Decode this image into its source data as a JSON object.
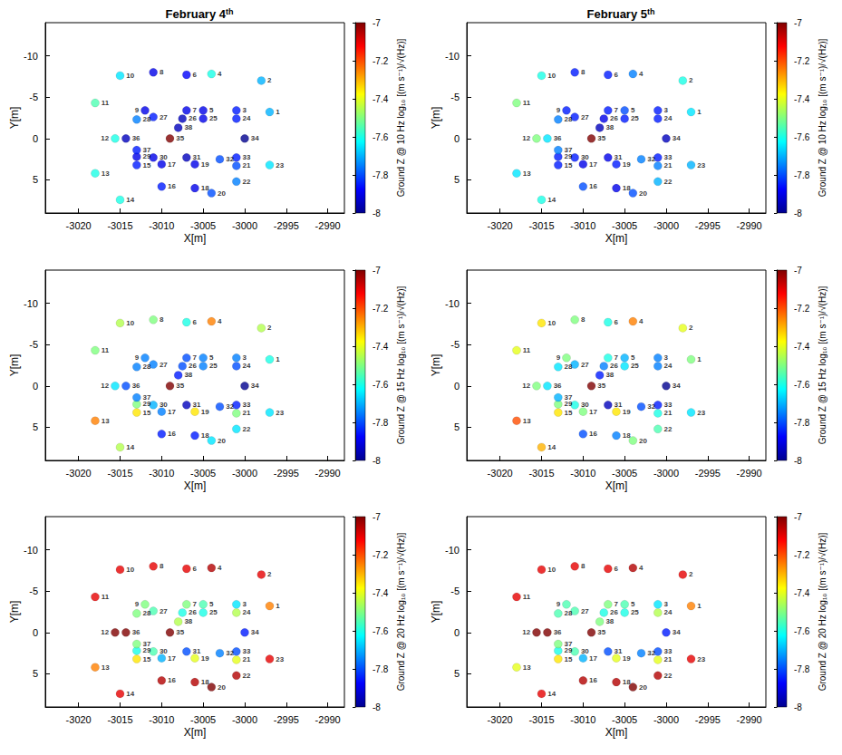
{
  "chart_data": [
    {
      "type": "scatter",
      "title": "February 4th",
      "x_label": "X[m]",
      "y_label": "Y[m]",
      "colorbar_label": "Ground Z @ 10 Hz log₁₀ [(m s⁻¹)/√(Hz)]",
      "x": [
        -2997,
        -2998,
        -3001,
        -3004,
        -3005,
        -3007,
        -3007,
        -3011,
        -3012,
        -3015,
        -3018,
        -3015.6,
        -3018,
        -3015,
        -3013,
        -3010,
        -3010,
        -3006,
        -3006,
        -3004,
        -3001,
        -3001,
        -2997,
        -3001,
        -3005,
        -3007.5,
        -3011,
        -3013,
        -3013,
        -3011,
        -3007,
        -3003,
        -3001,
        -3000,
        -3009,
        -3014.3,
        -3013,
        -3008
      ],
      "y": [
        -3.2,
        -7,
        -3.4,
        -7.8,
        -3.4,
        -7.7,
        -3.4,
        -8,
        -3.4,
        -7.6,
        -4.3,
        0,
        4.2,
        7.4,
        3.2,
        5.8,
        3.1,
        6,
        3.1,
        6.6,
        3.3,
        5.2,
        3.2,
        -2.4,
        -2.4,
        -2.4,
        -2.6,
        -2.3,
        2.2,
        2.3,
        2.3,
        2.5,
        2.3,
        0,
        0,
        0,
        1.4,
        -1.3
      ],
      "point_labels": [
        "1",
        "2",
        "3",
        "4",
        "5",
        "6",
        "7",
        "8",
        "9",
        "10",
        "11",
        "12",
        "13",
        "14",
        "15",
        "16",
        "17",
        "18",
        "19",
        "20",
        "21",
        "22",
        "23",
        "24",
        "25",
        "26",
        "27",
        "28",
        "29",
        "30",
        "31",
        "32",
        "33",
        "34",
        "35",
        "36",
        "37",
        "38"
      ],
      "values": [
        -7.7,
        -7.7,
        -7.85,
        -7.6,
        -7.9,
        -7.88,
        -7.9,
        -7.9,
        -7.9,
        -7.65,
        -7.55,
        -7.6,
        -7.6,
        -7.6,
        -7.85,
        -7.85,
        -7.9,
        -7.9,
        -7.9,
        -7.8,
        -7.8,
        -7.75,
        -7.65,
        -7.85,
        -7.9,
        -7.95,
        -7.85,
        -7.75,
        -7.9,
        -7.9,
        -7.95,
        -7.8,
        -7.85,
        -8,
        -7,
        -7.95,
        -7.85,
        -7.95
      ],
      "xlim": [
        -3024,
        -2988
      ],
      "ylim": [
        9,
        -14
      ],
      "xticks": [
        -3020,
        -3015,
        -3010,
        -3005,
        -3000,
        -2995,
        -2990
      ],
      "yticks": [
        -10,
        -5,
        0,
        5
      ],
      "color_range": [
        -8,
        -7
      ],
      "color_ticks": [
        -8,
        -7.8,
        -7.6,
        -7.4,
        -7.2,
        -7
      ]
    },
    {
      "type": "scatter",
      "title": "February 5th",
      "x_label": "X[m]",
      "y_label": "Y[m]",
      "colorbar_label": "Ground Z @ 10 Hz log₁₀ [(m s⁻¹)/√(Hz)]",
      "x": [
        -2997,
        -2998,
        -3001,
        -3004,
        -3005,
        -3007,
        -3007,
        -3011,
        -3012,
        -3015,
        -3018,
        -3015.6,
        -3018,
        -3015,
        -3013,
        -3010,
        -3010,
        -3006,
        -3006,
        -3004,
        -3001,
        -3001,
        -2997,
        -3001,
        -3005,
        -3007.5,
        -3011,
        -3013,
        -3013,
        -3011,
        -3007,
        -3003,
        -3001,
        -3000,
        -3009,
        -3014.3,
        -3013,
        -3008
      ],
      "y": [
        -3.2,
        -7,
        -3.4,
        -7.8,
        -3.4,
        -7.7,
        -3.4,
        -8,
        -3.4,
        -7.6,
        -4.3,
        0,
        4.2,
        7.4,
        3.2,
        5.8,
        3.1,
        6,
        3.1,
        6.6,
        3.3,
        5.2,
        3.2,
        -2.4,
        -2.4,
        -2.4,
        -2.6,
        -2.3,
        2.2,
        2.3,
        2.3,
        2.5,
        2.3,
        0,
        0,
        0,
        1.4,
        -1.3
      ],
      "point_labels": [
        "1",
        "2",
        "3",
        "4",
        "5",
        "6",
        "7",
        "8",
        "9",
        "10",
        "11",
        "12",
        "13",
        "14",
        "15",
        "16",
        "17",
        "18",
        "19",
        "20",
        "21",
        "22",
        "23",
        "24",
        "25",
        "26",
        "27",
        "28",
        "29",
        "30",
        "31",
        "32",
        "33",
        "34",
        "35",
        "36",
        "37",
        "38"
      ],
      "values": [
        -7.65,
        -7.6,
        -7.85,
        -7.75,
        -7.8,
        -7.85,
        -7.85,
        -7.85,
        -7.85,
        -7.6,
        -7.5,
        -7.5,
        -7.65,
        -7.6,
        -7.85,
        -7.8,
        -7.9,
        -7.9,
        -7.85,
        -7.8,
        -7.75,
        -7.7,
        -7.7,
        -7.85,
        -7.85,
        -7.9,
        -7.85,
        -7.75,
        -7.85,
        -7.85,
        -7.9,
        -7.75,
        -7.85,
        -7.95,
        -7,
        -7.65,
        -7.75,
        -7.95
      ],
      "xlim": [
        -3024,
        -2988
      ],
      "ylim": [
        9,
        -14
      ],
      "xticks": [
        -3020,
        -3015,
        -3010,
        -3005,
        -3000,
        -2995,
        -2990
      ],
      "yticks": [
        -10,
        -5,
        0,
        5
      ],
      "color_range": [
        -8,
        -7
      ],
      "color_ticks": [
        -8,
        -7.8,
        -7.6,
        -7.4,
        -7.2,
        -7
      ]
    },
    {
      "type": "scatter",
      "x_label": "X[m]",
      "y_label": "Y[m]",
      "colorbar_label": "Ground Z @ 15 Hz log₁₀ [(m s⁻¹)/√(Hz)]",
      "x": [
        -2997,
        -2998,
        -3001,
        -3004,
        -3005,
        -3007,
        -3007,
        -3011,
        -3012,
        -3015,
        -3018,
        -3015.6,
        -3018,
        -3015,
        -3013,
        -3010,
        -3010,
        -3006,
        -3006,
        -3004,
        -3001,
        -3001,
        -2997,
        -3001,
        -3005,
        -3007.5,
        -3011,
        -3013,
        -3013,
        -3011,
        -3007,
        -3003,
        -3001,
        -3000,
        -3009,
        -3014.3,
        -3013,
        -3008
      ],
      "y": [
        -3.2,
        -7,
        -3.4,
        -7.8,
        -3.4,
        -7.7,
        -3.4,
        -8,
        -3.4,
        -7.6,
        -4.3,
        0,
        4.2,
        7.4,
        3.2,
        5.8,
        3.1,
        6,
        3.1,
        6.6,
        3.3,
        5.2,
        3.2,
        -2.4,
        -2.4,
        -2.4,
        -2.6,
        -2.3,
        2.2,
        2.3,
        2.3,
        2.5,
        2.3,
        0,
        0,
        0,
        1.4,
        -1.3
      ],
      "point_labels": [
        "1",
        "2",
        "3",
        "4",
        "5",
        "6",
        "7",
        "8",
        "9",
        "10",
        "11",
        "12",
        "13",
        "14",
        "15",
        "16",
        "17",
        "18",
        "19",
        "20",
        "21",
        "22",
        "23",
        "24",
        "25",
        "26",
        "27",
        "28",
        "29",
        "30",
        "31",
        "32",
        "33",
        "34",
        "35",
        "36",
        "37",
        "38"
      ],
      "values": [
        -7.6,
        -7.45,
        -7.75,
        -7.25,
        -7.75,
        -7.6,
        -7.8,
        -7.5,
        -7.75,
        -7.45,
        -7.5,
        -7.65,
        -7.25,
        -7.45,
        -7.35,
        -7.85,
        -7.75,
        -7.85,
        -7.35,
        -7.65,
        -7.5,
        -7.65,
        -7.65,
        -7.8,
        -7.75,
        -7.8,
        -7.75,
        -7.75,
        -7.5,
        -7.7,
        -7.95,
        -7.8,
        -7.85,
        -8,
        -7,
        -7.8,
        -7.75,
        -7.85
      ],
      "xlim": [
        -3024,
        -2988
      ],
      "ylim": [
        9,
        -14
      ],
      "xticks": [
        -3020,
        -3015,
        -3010,
        -3005,
        -3000,
        -2995,
        -2990
      ],
      "yticks": [
        -10,
        -5,
        0,
        5
      ],
      "color_range": [
        -8,
        -7
      ],
      "color_ticks": [
        -8,
        -7.8,
        -7.6,
        -7.4,
        -7.2,
        -7
      ]
    },
    {
      "type": "scatter",
      "x_label": "X[m]",
      "y_label": "Y[m]",
      "colorbar_label": "Ground Z @ 15 Hz log₁₀ [(m s⁻¹)/√(Hz)]",
      "x": [
        -2997,
        -2998,
        -3001,
        -3004,
        -3005,
        -3007,
        -3007,
        -3011,
        -3012,
        -3015,
        -3018,
        -3015.6,
        -3018,
        -3015,
        -3013,
        -3010,
        -3010,
        -3006,
        -3006,
        -3004,
        -3001,
        -3001,
        -2997,
        -3001,
        -3005,
        -3007.5,
        -3011,
        -3013,
        -3013,
        -3011,
        -3007,
        -3003,
        -3001,
        -3000,
        -3009,
        -3014.3,
        -3013,
        -3008
      ],
      "y": [
        -3.2,
        -7,
        -3.4,
        -7.8,
        -3.4,
        -7.7,
        -3.4,
        -8,
        -3.4,
        -7.6,
        -4.3,
        0,
        4.2,
        7.4,
        3.2,
        5.8,
        3.1,
        6,
        3.1,
        6.6,
        3.3,
        5.2,
        3.2,
        -2.4,
        -2.4,
        -2.4,
        -2.6,
        -2.3,
        2.2,
        2.3,
        2.3,
        2.5,
        2.3,
        0,
        0,
        0,
        1.4,
        -1.3
      ],
      "point_labels": [
        "1",
        "2",
        "3",
        "4",
        "5",
        "6",
        "7",
        "8",
        "9",
        "10",
        "11",
        "12",
        "13",
        "14",
        "15",
        "16",
        "17",
        "18",
        "19",
        "20",
        "21",
        "22",
        "23",
        "24",
        "25",
        "26",
        "27",
        "28",
        "29",
        "30",
        "31",
        "32",
        "33",
        "34",
        "35",
        "36",
        "37",
        "38"
      ],
      "values": [
        -7.5,
        -7.4,
        -7.75,
        -7.25,
        -7.7,
        -7.6,
        -7.6,
        -7.5,
        -7.5,
        -7.35,
        -7.4,
        -7.5,
        -7.2,
        -7.3,
        -7.35,
        -7.8,
        -7.5,
        -7.75,
        -7.35,
        -7.5,
        -7.6,
        -7.55,
        -7.65,
        -7.75,
        -7.65,
        -7.75,
        -7.7,
        -7.65,
        -7.5,
        -7.6,
        -7.95,
        -7.8,
        -7.85,
        -8,
        -7,
        -7.65,
        -7.7,
        -7.85
      ],
      "xlim": [
        -3024,
        -2988
      ],
      "ylim": [
        9,
        -14
      ],
      "xticks": [
        -3020,
        -3015,
        -3010,
        -3005,
        -3000,
        -2995,
        -2990
      ],
      "yticks": [
        -10,
        -5,
        0,
        5
      ],
      "color_range": [
        -8,
        -7
      ],
      "color_ticks": [
        -8,
        -7.8,
        -7.6,
        -7.4,
        -7.2,
        -7
      ]
    },
    {
      "type": "scatter",
      "x_label": "X[m]",
      "y_label": "Y[m]",
      "colorbar_label": "Ground Z @ 20 Hz log₁₀ [(m s⁻¹)/√(Hz)]",
      "x": [
        -2997,
        -2998,
        -3001,
        -3004,
        -3005,
        -3007,
        -3007,
        -3011,
        -3012,
        -3015,
        -3018,
        -3015.6,
        -3018,
        -3015,
        -3013,
        -3010,
        -3010,
        -3006,
        -3006,
        -3004,
        -3001,
        -3001,
        -2997,
        -3001,
        -3005,
        -3007.5,
        -3011,
        -3013,
        -3013,
        -3011,
        -3007,
        -3003,
        -3001,
        -3000,
        -3009,
        -3014.3,
        -3013,
        -3008
      ],
      "y": [
        -3.2,
        -7,
        -3.4,
        -7.8,
        -3.4,
        -7.7,
        -3.4,
        -8,
        -3.4,
        -7.6,
        -4.3,
        0,
        4.2,
        7.4,
        3.2,
        5.8,
        3.1,
        6,
        3.1,
        6.6,
        3.3,
        5.2,
        3.2,
        -2.4,
        -2.4,
        -2.4,
        -2.6,
        -2.3,
        2.2,
        2.3,
        2.3,
        2.5,
        2.3,
        0,
        0,
        0,
        1.4,
        -1.3
      ],
      "point_labels": [
        "1",
        "2",
        "3",
        "4",
        "5",
        "6",
        "7",
        "8",
        "9",
        "10",
        "11",
        "12",
        "13",
        "14",
        "15",
        "16",
        "17",
        "18",
        "19",
        "20",
        "21",
        "22",
        "23",
        "24",
        "25",
        "26",
        "27",
        "28",
        "29",
        "30",
        "31",
        "32",
        "33",
        "34",
        "35",
        "36",
        "37",
        "38"
      ],
      "values": [
        -7.25,
        -7.1,
        -7.65,
        -7.05,
        -7.55,
        -7.1,
        -7.5,
        -7.1,
        -7.5,
        -7.1,
        -7.1,
        -7,
        -7.25,
        -7.1,
        -7.35,
        -7.05,
        -7.7,
        -7.05,
        -7.4,
        -7,
        -7.4,
        -7.05,
        -7.1,
        -7.45,
        -7.6,
        -7.6,
        -7.55,
        -7.5,
        -7.6,
        -7.55,
        -7.8,
        -7.75,
        -7.8,
        -7.85,
        -7,
        -7,
        -7.5,
        -7.45
      ],
      "xlim": [
        -3024,
        -2988
      ],
      "ylim": [
        9,
        -14
      ],
      "xticks": [
        -3020,
        -3015,
        -3010,
        -3005,
        -3000,
        -2995,
        -2990
      ],
      "yticks": [
        -10,
        -5,
        0,
        5
      ],
      "color_range": [
        -8,
        -7
      ],
      "color_ticks": [
        -8,
        -7.8,
        -7.6,
        -7.4,
        -7.2,
        -7
      ]
    },
    {
      "type": "scatter",
      "x_label": "X[m]",
      "y_label": "Y[m]",
      "colorbar_label": "Ground Z @ 20 Hz log₁₀ [(m s⁻¹)/√(Hz)]",
      "x": [
        -2997,
        -2998,
        -3001,
        -3004,
        -3005,
        -3007,
        -3007,
        -3011,
        -3012,
        -3015,
        -3018,
        -3015.6,
        -3018,
        -3015,
        -3013,
        -3010,
        -3010,
        -3006,
        -3006,
        -3004,
        -3001,
        -3001,
        -2997,
        -3001,
        -3005,
        -3007.5,
        -3011,
        -3013,
        -3013,
        -3011,
        -3007,
        -3003,
        -3001,
        -3000,
        -3009,
        -3014.3,
        -3013,
        -3008
      ],
      "y": [
        -3.2,
        -7,
        -3.4,
        -7.8,
        -3.4,
        -7.7,
        -3.4,
        -8,
        -3.4,
        -7.6,
        -4.3,
        0,
        4.2,
        7.4,
        3.2,
        5.8,
        3.1,
        6,
        3.1,
        6.6,
        3.3,
        5.2,
        3.2,
        -2.4,
        -2.4,
        -2.4,
        -2.6,
        -2.3,
        2.2,
        2.3,
        2.3,
        2.5,
        2.3,
        0,
        0,
        0,
        1.4,
        -1.3
      ],
      "point_labels": [
        "1",
        "2",
        "3",
        "4",
        "5",
        "6",
        "7",
        "8",
        "9",
        "10",
        "11",
        "12",
        "13",
        "14",
        "15",
        "16",
        "17",
        "18",
        "19",
        "20",
        "21",
        "22",
        "23",
        "24",
        "25",
        "26",
        "27",
        "28",
        "29",
        "30",
        "31",
        "32",
        "33",
        "34",
        "35",
        "36",
        "37",
        "38"
      ],
      "values": [
        -7.25,
        -7.1,
        -7.65,
        -7.05,
        -7.55,
        -7.1,
        -7.5,
        -7.1,
        -7.55,
        -7.1,
        -7.1,
        -7,
        -7.4,
        -7.1,
        -7.35,
        -7.05,
        -7.7,
        -7.05,
        -7.4,
        -7,
        -7.4,
        -7.05,
        -7.1,
        -7.45,
        -7.6,
        -7.6,
        -7.55,
        -7.55,
        -7.6,
        -7.55,
        -7.8,
        -7.75,
        -7.8,
        -7.85,
        -7,
        -7,
        -7.5,
        -7.5
      ],
      "xlim": [
        -3024,
        -2988
      ],
      "ylim": [
        9,
        -14
      ],
      "xticks": [
        -3020,
        -3015,
        -3010,
        -3005,
        -3000,
        -2995,
        -2990
      ],
      "yticks": [
        -10,
        -5,
        0,
        5
      ],
      "color_range": [
        -8,
        -7
      ],
      "color_ticks": [
        -8,
        -7.8,
        -7.6,
        -7.4,
        -7.2,
        -7
      ]
    }
  ]
}
